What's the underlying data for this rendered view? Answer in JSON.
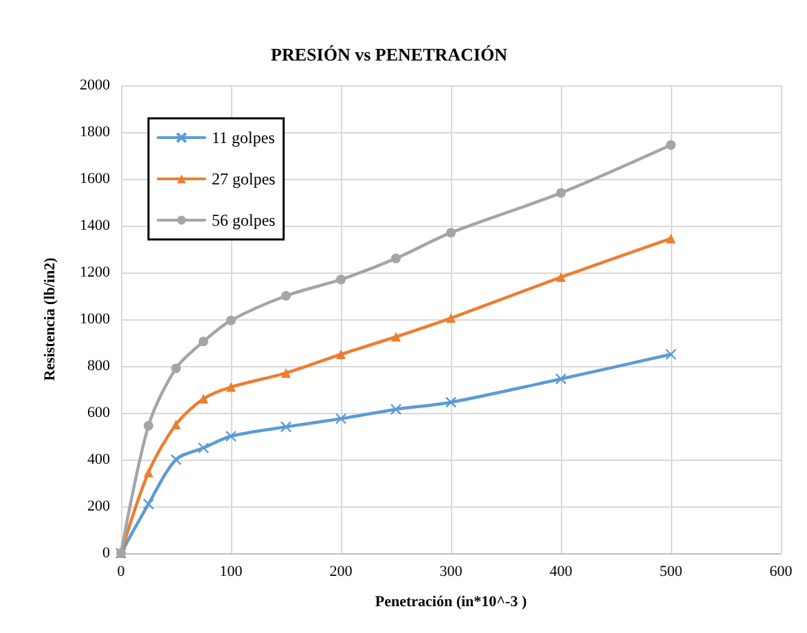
{
  "chart_data": {
    "type": "line",
    "title": "PRESIÓN vs PENETRACIÓN",
    "xlabel": "Penetración (in*10^-3 )",
    "ylabel": "Resistencia (lb/in2)",
    "x": [
      0,
      25,
      50,
      75,
      100,
      150,
      200,
      250,
      300,
      400,
      500
    ],
    "series": [
      {
        "name": "11 golpes",
        "color": "#5b9bd5",
        "marker": "cross",
        "values": [
          0,
          210,
          400,
          450,
          500,
          540,
          575,
          615,
          645,
          745,
          850
        ]
      },
      {
        "name": "27 golpes",
        "color": "#ed7d31",
        "marker": "triangle",
        "values": [
          0,
          345,
          550,
          660,
          710,
          770,
          850,
          925,
          1005,
          1180,
          1345
        ]
      },
      {
        "name": "56 golpes",
        "color": "#a5a5a5",
        "marker": "circle",
        "values": [
          0,
          545,
          790,
          905,
          995,
          1100,
          1170,
          1260,
          1370,
          1540,
          1745
        ]
      }
    ],
    "xlim": [
      0,
      600
    ],
    "xticks": [
      0,
      100,
      200,
      300,
      400,
      500,
      600
    ],
    "ylim": [
      0,
      2000
    ],
    "yticks": [
      0,
      200,
      400,
      600,
      800,
      1000,
      1200,
      1400,
      1600,
      1800,
      2000
    ],
    "grid": true,
    "legend": "top left",
    "line_style": "solid"
  }
}
